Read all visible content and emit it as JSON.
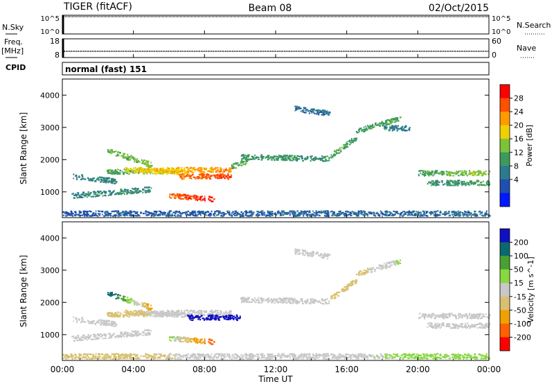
{
  "header": {
    "site": "TIGER (fitACF)",
    "beam": "Beam 08",
    "date": "02/Oct/2015"
  },
  "noise_panel": {
    "left_label": "N.Sky",
    "right_label": "N.Search",
    "left_ticks": [
      "10^5",
      "10^0"
    ],
    "right_ticks": [
      "10^5",
      "10^0"
    ]
  },
  "freq_panel": {
    "left_label": "Freq.",
    "left_unit": "[MHz]",
    "right_label": "Nave",
    "left_ticks": [
      "18",
      "8"
    ],
    "right_ticks": [
      "60",
      "0"
    ]
  },
  "cpid_panel": {
    "label": "CPID",
    "text": "normal (fast) 151"
  },
  "colors": {
    "power": [
      "#0018ff",
      "#1f4fb0",
      "#2d7a8f",
      "#3c9a5e",
      "#7cc23a",
      "#f0d000",
      "#ff9a00",
      "#ff5000",
      "#ff0000"
    ],
    "velocity": [
      "#1010c0",
      "#0a6a70",
      "#49a030",
      "#88d840",
      "#c8c8c8",
      "#d8c070",
      "#f0a000",
      "#ff6000",
      "#ff0000"
    ]
  },
  "chart_data": [
    {
      "type": "heatmap",
      "parameter": "power",
      "ylabel": "Slant Range [km]",
      "yticks": [
        "1000",
        "2000",
        "3000",
        "4000"
      ],
      "ylim": [
        200,
        4500
      ],
      "xlim": [
        0,
        24
      ],
      "colorbar_label": "Power [dB]",
      "colorbar_ticks": [
        "4",
        "8",
        "12",
        "16",
        "20",
        "24",
        "28"
      ],
      "colorbar_range": [
        0,
        32
      ],
      "echo_bands": [
        {
          "t0": 0.6,
          "t1": 3.0,
          "r0": 1500,
          "r1": 1350,
          "v0": 9,
          "v1": 10
        },
        {
          "t0": 2.5,
          "t1": 7.0,
          "r0": 1650,
          "r1": 1650,
          "v0": 13,
          "v1": 20
        },
        {
          "t0": 3.5,
          "t1": 9.5,
          "r0": 1700,
          "r1": 1700,
          "v0": 19,
          "v1": 24
        },
        {
          "t0": 6.5,
          "t1": 9.5,
          "r0": 1500,
          "r1": 1500,
          "v0": 25,
          "v1": 28
        },
        {
          "t0": 0.5,
          "t1": 5.0,
          "r0": 900,
          "r1": 1100,
          "v0": 10,
          "v1": 11
        },
        {
          "t0": 2.5,
          "t1": 5.0,
          "r0": 2300,
          "r1": 1850,
          "v0": 14,
          "v1": 16
        },
        {
          "t0": 6.0,
          "t1": 8.5,
          "r0": 900,
          "r1": 800,
          "v0": 26,
          "v1": 29
        },
        {
          "t0": 9.5,
          "t1": 10.5,
          "r0": 1800,
          "r1": 2000,
          "v0": 13,
          "v1": 13
        },
        {
          "t0": 10.0,
          "t1": 15.0,
          "r0": 2100,
          "r1": 2050,
          "v0": 12,
          "v1": 12
        },
        {
          "t0": 13.0,
          "t1": 15.0,
          "r0": 3600,
          "r1": 3450,
          "v0": 8,
          "v1": 8
        },
        {
          "t0": 15.0,
          "t1": 16.5,
          "r0": 2100,
          "r1": 2700,
          "v0": 13,
          "v1": 13
        },
        {
          "t0": 16.5,
          "t1": 19.0,
          "r0": 2900,
          "r1": 3300,
          "v0": 12,
          "v1": 14
        },
        {
          "t0": 18.0,
          "t1": 19.5,
          "r0": 3000,
          "r1": 3000,
          "v0": 9,
          "v1": 9
        },
        {
          "t0": 20.0,
          "t1": 24.0,
          "r0": 1600,
          "r1": 1600,
          "v0": 13,
          "v1": 17
        },
        {
          "t0": 20.5,
          "t1": 24.0,
          "r0": 1300,
          "r1": 1300,
          "v0": 11,
          "v1": 13
        },
        {
          "t0": 0.0,
          "t1": 24.0,
          "r0": 350,
          "r1": 350,
          "v0": 6,
          "v1": 8
        }
      ]
    },
    {
      "type": "heatmap",
      "parameter": "velocity",
      "ylabel": "Slant Range [km]",
      "yticks": [
        "1000",
        "2000",
        "3000",
        "4000"
      ],
      "ylim": [
        200,
        4500
      ],
      "xlim": [
        0,
        24
      ],
      "xlabel": "Time UT",
      "xticks": [
        "00:00",
        "04:00",
        "08:00",
        "12:00",
        "16:00",
        "20:00",
        "00:00"
      ],
      "colorbar_label": "Velocity [m s^-1]",
      "colorbar_ticks": [
        "200",
        "100",
        "50",
        "15",
        "-15",
        "-50",
        "-100",
        "-200"
      ],
      "echo_bands": [
        {
          "t0": 0.6,
          "t1": 3.0,
          "r0": 1500,
          "r1": 1350,
          "v0": -10,
          "v1": 0
        },
        {
          "t0": 2.5,
          "t1": 7.0,
          "r0": 1650,
          "r1": 1650,
          "v0": -40,
          "v1": 10
        },
        {
          "t0": 3.5,
          "t1": 9.5,
          "r0": 1700,
          "r1": 1700,
          "v0": -20,
          "v1": 5
        },
        {
          "t0": 7.0,
          "t1": 10.0,
          "r0": 1550,
          "r1": 1550,
          "v0": 250,
          "v1": 250
        },
        {
          "t0": 0.5,
          "t1": 5.0,
          "r0": 900,
          "r1": 1100,
          "v0": 0,
          "v1": 10
        },
        {
          "t0": 2.5,
          "t1": 5.0,
          "r0": 2300,
          "r1": 1850,
          "v0": 150,
          "v1": -80
        },
        {
          "t0": 6.0,
          "t1": 8.5,
          "r0": 900,
          "r1": 800,
          "v0": 40,
          "v1": -150
        },
        {
          "t0": 10.0,
          "t1": 15.0,
          "r0": 2100,
          "r1": 2050,
          "v0": 0,
          "v1": 0
        },
        {
          "t0": 13.0,
          "t1": 15.0,
          "r0": 3600,
          "r1": 3450,
          "v0": 0,
          "v1": 0
        },
        {
          "t0": 15.0,
          "t1": 16.5,
          "r0": 2100,
          "r1": 2700,
          "v0": -20,
          "v1": -20
        },
        {
          "t0": 16.5,
          "t1": 19.0,
          "r0": 2900,
          "r1": 3300,
          "v0": -30,
          "v1": 20
        },
        {
          "t0": 20.0,
          "t1": 24.0,
          "r0": 1600,
          "r1": 1600,
          "v0": 0,
          "v1": 0
        },
        {
          "t0": 20.5,
          "t1": 24.0,
          "r0": 1300,
          "r1": 1300,
          "v0": 0,
          "v1": 0
        },
        {
          "t0": 0.0,
          "t1": 24.0,
          "r0": 350,
          "r1": 350,
          "v0": -30,
          "v1": 30
        }
      ]
    }
  ]
}
